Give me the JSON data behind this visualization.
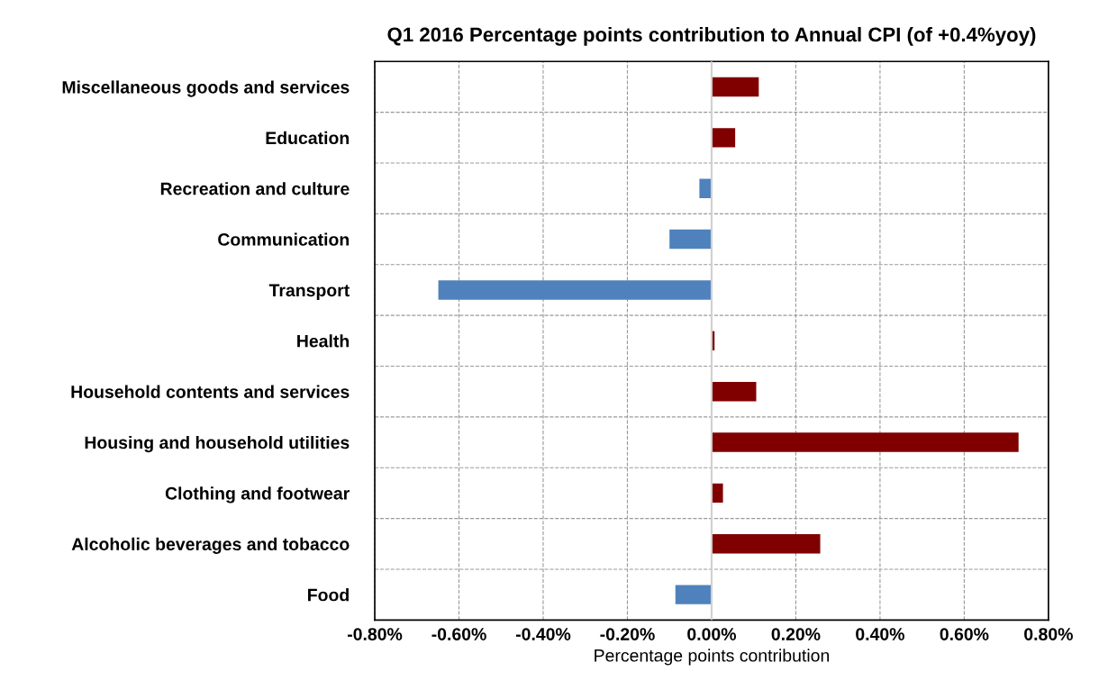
{
  "chart_data": {
    "type": "bar",
    "orientation": "horizontal",
    "title": "Q1 2016 Percentage points contribution to Annual CPI (of +0.4%yoy)",
    "xlabel": "Percentage points contribution",
    "categories": [
      "Miscellaneous goods and services",
      "Education",
      "Recreation and culture",
      "Communication",
      "Transport",
      "Health",
      "Household contents and services",
      "Housing and household utilities",
      "Clothing and footwear",
      "Alcoholic beverages and tobacco",
      "Food"
    ],
    "values": [
      0.112,
      0.056,
      -0.029,
      -0.1,
      -0.649,
      0.007,
      0.106,
      0.729,
      0.027,
      0.258,
      -0.086
    ],
    "colors": [
      "#800000",
      "#800000",
      "#4f81bd",
      "#4f81bd",
      "#4f81bd",
      "#800000",
      "#800000",
      "#800000",
      "#800000",
      "#800000",
      "#4f81bd"
    ],
    "xlim": [
      -0.8,
      0.8
    ],
    "xticks": [
      {
        "value": -0.8,
        "label": "-0.80%"
      },
      {
        "value": -0.6,
        "label": "-0.60%"
      },
      {
        "value": -0.4,
        "label": "-0.40%"
      },
      {
        "value": -0.2,
        "label": "-0.20%"
      },
      {
        "value": 0,
        "label": "0.00%"
      },
      {
        "value": 0.2,
        "label": "0.20%"
      },
      {
        "value": 0.4,
        "label": "0.40%"
      },
      {
        "value": 0.6,
        "label": "0.60%"
      },
      {
        "value": 0.8,
        "label": "0.80%"
      }
    ],
    "grid": true
  }
}
